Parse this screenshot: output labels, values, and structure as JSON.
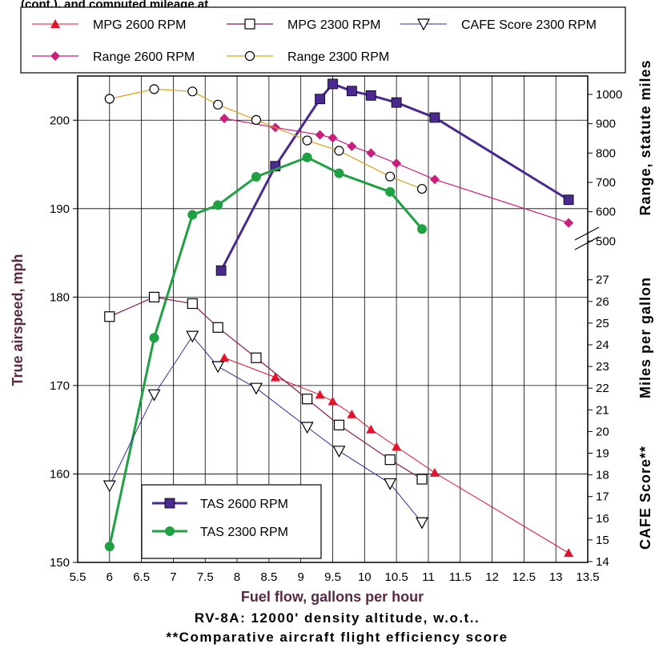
{
  "chart_data": {
    "type": "line",
    "top_caption": "(cont.), and computed mileage at",
    "captions": [
      "RV-8A:  12000' density altitude, w.o.t..",
      "**Comparative aircraft flight efficiency score"
    ],
    "xlabel": "Fuel flow, gallons per hour",
    "ylabel_left": "True airspeed, mph",
    "ylabel_right": [
      "Range, statute miles",
      "Miles per gallon",
      "CAFE Score**"
    ],
    "xlim": [
      5.5,
      13.5
    ],
    "x_ticks": [
      "5.5",
      "6",
      "6.5",
      "7",
      "7.5",
      "8",
      "8.5",
      "9",
      "9.5",
      "10",
      "10.5",
      "11",
      "11.5",
      "12",
      "12.5",
      "13",
      "13.5"
    ],
    "ylim_left": [
      150,
      205
    ],
    "y_left_ticks": [
      "150",
      "160",
      "170",
      "180",
      "190",
      "200"
    ],
    "range_axis": {
      "ticks": [
        "500",
        "600",
        "700",
        "800",
        "900",
        "1000"
      ]
    },
    "mpg_axis": {
      "ticks": [
        "14",
        "15",
        "16",
        "17",
        "18",
        "19",
        "20",
        "21",
        "22",
        "23",
        "24",
        "25",
        "26",
        "27"
      ]
    },
    "cafe_axis": {
      "ticks": []
    },
    "grid": true,
    "series": [
      {
        "name": "TAS 2600 RPM",
        "axis": "left",
        "color": "#4b2a8f",
        "marker": "square-filled",
        "stroke_width": 3,
        "x": [
          7.75,
          8.6,
          9.3,
          9.5,
          9.8,
          10.1,
          10.5,
          11.1,
          13.2
        ],
        "y": [
          183.0,
          194.8,
          202.4,
          204.1,
          203.3,
          202.8,
          202.0,
          200.3,
          191.0
        ]
      },
      {
        "name": "TAS 2300 RPM",
        "axis": "left",
        "color": "#1fa043",
        "marker": "circle-filled",
        "stroke_width": 3,
        "x": [
          6.0,
          6.7,
          7.3,
          7.7,
          8.3,
          9.1,
          9.6,
          10.4,
          10.9
        ],
        "y": [
          151.8,
          175.4,
          189.3,
          190.4,
          193.6,
          195.8,
          194.0,
          191.9,
          187.7
        ]
      },
      {
        "name": "Range 2600 RPM",
        "axis": "range",
        "color": "#c81e7d",
        "marker": "diamond-filled",
        "stroke_width": 1.2,
        "x": [
          7.8,
          8.6,
          9.3,
          9.5,
          9.8,
          10.1,
          10.5,
          11.1,
          13.2
        ],
        "y": [
          918,
          887,
          862,
          852,
          823,
          800,
          765,
          710,
          562
        ]
      },
      {
        "name": "Range 2300 RPM",
        "axis": "range",
        "color": "#d9a21c",
        "marker": "circle-open",
        "stroke_width": 1.2,
        "x": [
          6.0,
          6.7,
          7.3,
          7.7,
          8.3,
          9.1,
          9.6,
          10.4,
          10.9
        ],
        "y": [
          985,
          1018,
          1010,
          965,
          913,
          843,
          808,
          720,
          678
        ]
      },
      {
        "name": "MPG 2600 RPM",
        "axis": "mpg",
        "color": "#e0142c",
        "marker": "triangle-up-filled",
        "stroke_width": 1.0,
        "x": [
          7.8,
          8.6,
          9.3,
          9.5,
          9.8,
          10.1,
          10.5,
          11.1,
          13.2
        ],
        "y": [
          23.4,
          22.5,
          21.7,
          21.4,
          20.8,
          20.1,
          19.3,
          18.1,
          14.4
        ]
      },
      {
        "name": "MPG 2300 RPM",
        "axis": "mpg",
        "color": "#8a1a54",
        "marker": "square-open",
        "stroke_width": 1.2,
        "x": [
          6.0,
          6.7,
          7.3,
          7.7,
          8.3,
          9.1,
          9.6,
          10.4,
          10.9
        ],
        "y": [
          25.3,
          26.2,
          25.9,
          24.8,
          23.4,
          21.5,
          20.3,
          18.7,
          17.8
        ]
      },
      {
        "name": "CAFE Score 2300 RPM",
        "axis": "mpg",
        "color": "#3b2a9a",
        "marker": "triangle-down-open",
        "stroke_width": 1.0,
        "x": [
          6.0,
          6.7,
          7.3,
          7.7,
          8.3,
          9.1,
          9.6,
          10.4,
          10.9
        ],
        "y": [
          17.5,
          21.7,
          24.4,
          23.0,
          22.0,
          20.2,
          19.1,
          17.6,
          15.8
        ]
      }
    ],
    "legend_top_order": [
      "MPG 2600 RPM",
      "MPG 2300 RPM",
      "CAFE Score 2300 RPM",
      "Range 2600 RPM",
      "Range 2300 RPM"
    ],
    "legend_inner_order": [
      "TAS 2600 RPM",
      "TAS 2300 RPM"
    ],
    "legend_top_placement": "top",
    "legend_inner_placement": "lower-left"
  }
}
